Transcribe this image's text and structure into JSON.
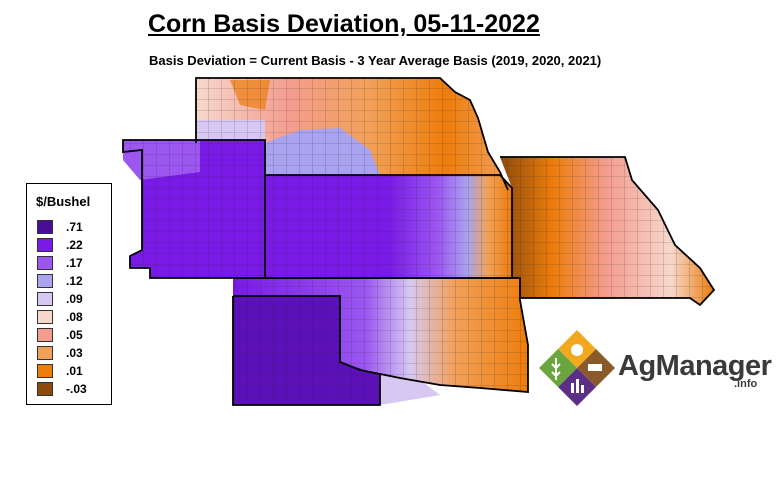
{
  "title": "Corn Basis Deviation, 05-11-2022",
  "subtitle": "Basis Deviation = Current Basis - 3 Year Average Basis (2019, 2020, 2021)",
  "legend": {
    "title": "$/Bushel",
    "items": [
      {
        "label": ".71",
        "color": "#4a0d96"
      },
      {
        "label": ".22",
        "color": "#7a1ae6"
      },
      {
        "label": ".17",
        "color": "#9b57f0"
      },
      {
        "label": ".12",
        "color": "#a9a3f0"
      },
      {
        "label": ".09",
        "color": "#d6c8f2"
      },
      {
        "label": ".08",
        "color": "#f6d8cc"
      },
      {
        "label": ".05",
        "color": "#f49d8f"
      },
      {
        "label": ".03",
        "color": "#f2a15a"
      },
      {
        "label": ".01",
        "color": "#ed7d0c"
      },
      {
        "label": "-.03",
        "color": "#8c4a0c"
      }
    ]
  },
  "logo": {
    "name": "AgManager",
    "suffix": ".info"
  }
}
